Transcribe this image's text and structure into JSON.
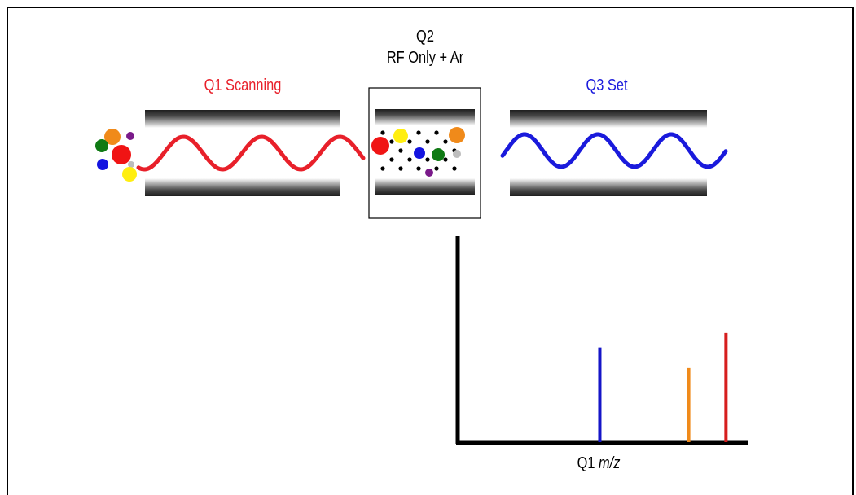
{
  "labels": {
    "q2_line1": "Q2",
    "q2_line2": "RF Only + Ar",
    "q1": "Q1 Scanning",
    "q3": "Q3 Set",
    "axis_prefix": "Q1",
    "axis_unit": "m/z"
  },
  "colors": {
    "q1": "#e8202a",
    "q3": "#1a1adc",
    "text": "#000000"
  },
  "chart_data": {
    "type": "bar",
    "xlabel": "Q1 m/z",
    "series": [
      {
        "color": "#1515c8",
        "relative_x": 0.49,
        "relative_height": 0.46
      },
      {
        "color": "#f08a1a",
        "relative_x": 0.8,
        "relative_height": 0.36
      },
      {
        "color": "#d61e1e",
        "relative_x": 0.93,
        "relative_height": 0.53
      }
    ]
  }
}
